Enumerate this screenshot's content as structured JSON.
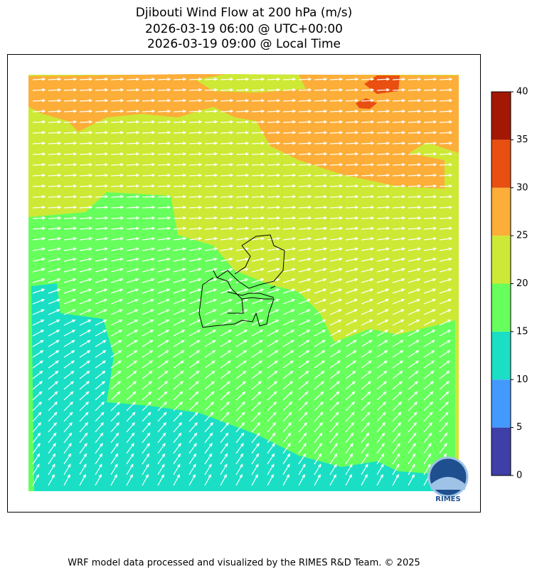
{
  "title": [
    "Djibouti Wind Flow at 200 hPa (m/s)",
    "2026-03-19 06:00 @ UTC+00:00",
    "2026-03-19 09:00 @ Local Time"
  ],
  "colorbar": {
    "ticks": [
      0,
      5,
      10,
      15,
      20,
      25,
      30,
      35,
      40
    ],
    "colors": [
      "#3f3fa8",
      "#4499ff",
      "#1adfc4",
      "#66ff5c",
      "#cde935",
      "#fcae39",
      "#e84f11",
      "#a31805"
    ]
  },
  "logo": {
    "text": "RIMES"
  },
  "footer": "WRF model data processed and visualized by the RIMES R&D Team. © 2025"
}
